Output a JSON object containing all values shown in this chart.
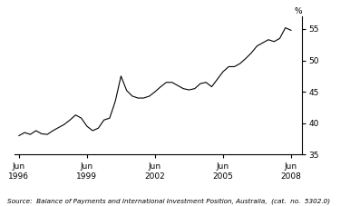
{
  "source_text": "Source:  Balance of Payments and International Investment Position, Australia,  (cat.  no.  5302.0)",
  "ylim": [
    35,
    57
  ],
  "yticks": [
    35,
    40,
    45,
    50,
    55
  ],
  "line_color": "#000000",
  "background_color": "#ffffff",
  "xlim": [
    1996.3,
    2009.0
  ],
  "x_tick_positions": [
    1996.5,
    1999.5,
    2002.5,
    2005.5,
    2008.5
  ],
  "x_tick_labels": [
    "Jun\n1996",
    "Jun\n1999",
    "Jun\n2002",
    "Jun\n2005",
    "Jun\n2008"
  ],
  "data": [
    [
      1996.5,
      38.0
    ],
    [
      1996.75,
      38.5
    ],
    [
      1997.0,
      38.2
    ],
    [
      1997.25,
      38.8
    ],
    [
      1997.5,
      38.3
    ],
    [
      1997.75,
      38.2
    ],
    [
      1998.0,
      38.8
    ],
    [
      1998.25,
      39.3
    ],
    [
      1998.5,
      39.8
    ],
    [
      1998.75,
      40.5
    ],
    [
      1999.0,
      41.3
    ],
    [
      1999.25,
      40.8
    ],
    [
      1999.5,
      39.5
    ],
    [
      1999.75,
      38.8
    ],
    [
      2000.0,
      39.2
    ],
    [
      2000.25,
      40.5
    ],
    [
      2000.5,
      40.8
    ],
    [
      2000.75,
      43.5
    ],
    [
      2001.0,
      47.5
    ],
    [
      2001.25,
      45.2
    ],
    [
      2001.5,
      44.3
    ],
    [
      2001.75,
      44.0
    ],
    [
      2002.0,
      44.0
    ],
    [
      2002.25,
      44.3
    ],
    [
      2002.5,
      45.0
    ],
    [
      2002.75,
      45.8
    ],
    [
      2003.0,
      46.5
    ],
    [
      2003.25,
      46.5
    ],
    [
      2003.5,
      46.0
    ],
    [
      2003.75,
      45.5
    ],
    [
      2004.0,
      45.3
    ],
    [
      2004.25,
      45.5
    ],
    [
      2004.5,
      46.3
    ],
    [
      2004.75,
      46.5
    ],
    [
      2005.0,
      45.8
    ],
    [
      2005.25,
      47.0
    ],
    [
      2005.5,
      48.2
    ],
    [
      2005.75,
      49.0
    ],
    [
      2006.0,
      49.0
    ],
    [
      2006.25,
      49.5
    ],
    [
      2006.5,
      50.3
    ],
    [
      2006.75,
      51.2
    ],
    [
      2007.0,
      52.3
    ],
    [
      2007.25,
      52.8
    ],
    [
      2007.5,
      53.3
    ],
    [
      2007.75,
      53.0
    ],
    [
      2008.0,
      53.5
    ],
    [
      2008.25,
      55.2
    ],
    [
      2008.5,
      54.8
    ]
  ]
}
